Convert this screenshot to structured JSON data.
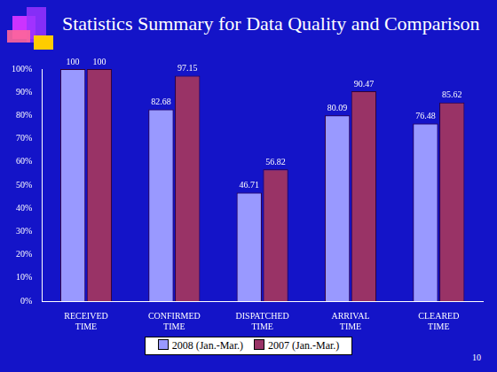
{
  "slide": {
    "page_number": "10"
  },
  "chart_data": {
    "type": "bar",
    "title": "Statistics Summary for Data Quality and Comparison",
    "categories": [
      "RECEIVED TIME",
      "CONFIRMED TIME",
      "DISPATCHED TIME",
      "ARRIVAL TIME",
      "CLEARED TIME"
    ],
    "series": [
      {
        "name": "2008 (Jan.-Mar.)",
        "color": "#9999ff",
        "values": [
          100,
          82.68,
          46.71,
          80.09,
          76.48
        ]
      },
      {
        "name": "2007 (Jan.-Mar.)",
        "color": "#993366",
        "values": [
          100,
          97.15,
          56.82,
          90.47,
          85.62
        ]
      }
    ],
    "ylim": [
      0,
      100
    ],
    "yticks": [
      {
        "value": 0,
        "label": "0%"
      },
      {
        "value": 10,
        "label": "10%"
      },
      {
        "value": 20,
        "label": "20%"
      },
      {
        "value": 30,
        "label": "30%"
      },
      {
        "value": 40,
        "label": "40%"
      },
      {
        "value": 50,
        "label": "50%"
      },
      {
        "value": 60,
        "label": "60%"
      },
      {
        "value": 70,
        "label": "70%"
      },
      {
        "value": 80,
        "label": "80%"
      },
      {
        "value": 90,
        "label": "90%"
      },
      {
        "value": 100,
        "label": "100%"
      }
    ],
    "grid": false,
    "legend": "bottom",
    "data_labels": true
  }
}
